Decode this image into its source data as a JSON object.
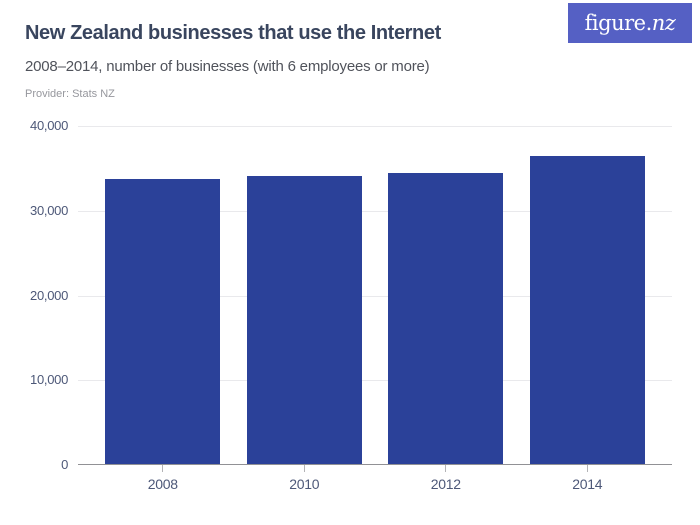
{
  "header": {
    "title": "New Zealand businesses that use the Internet",
    "subtitle": "2008–2014, number of businesses (with 6 employees or more)",
    "provider": "Provider: Stats NZ",
    "logo": {
      "text_regular": "figure.",
      "text_italic": "nz",
      "bg_color": "#5560c4"
    }
  },
  "chart_data": {
    "type": "bar",
    "title": "New Zealand businesses that use the Internet",
    "subtitle": "2008–2014, number of businesses (with 6 employees or more)",
    "provider": "Stats NZ",
    "categories": [
      "2008",
      "2010",
      "2012",
      "2014"
    ],
    "values": [
      33800,
      34100,
      34500,
      36500
    ],
    "xlabel": "",
    "ylabel": "",
    "ylim": [
      0,
      40000
    ],
    "y_ticks": [
      {
        "value": 0,
        "label": "0"
      },
      {
        "value": 10000,
        "label": "10,000"
      },
      {
        "value": 20000,
        "label": "20,000"
      },
      {
        "value": 30000,
        "label": "30,000"
      },
      {
        "value": 40000,
        "label": "40,000"
      }
    ],
    "grid": "horizontal",
    "legend": "none",
    "bar_color": "#2b4199",
    "gridline_color": "#e9e9ec",
    "axis_color": "#919195"
  }
}
